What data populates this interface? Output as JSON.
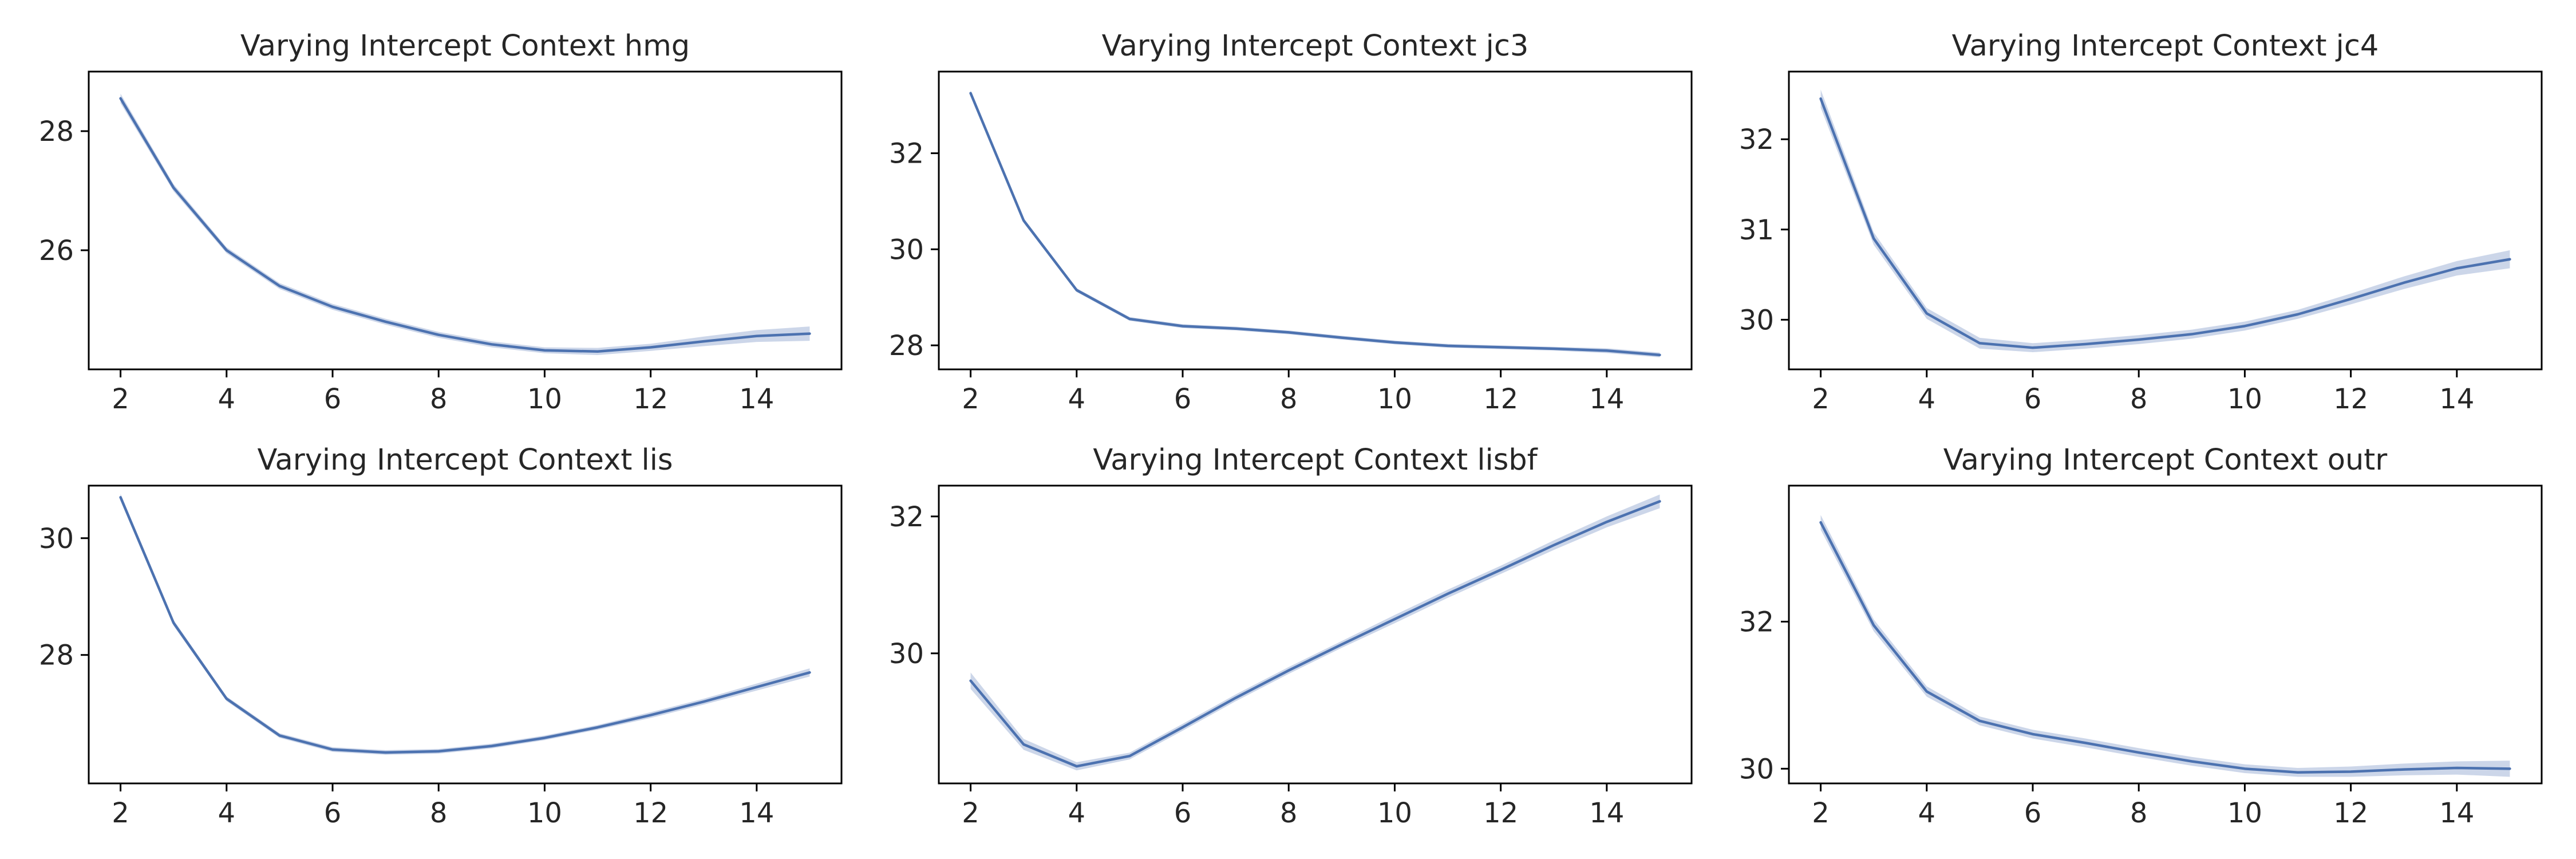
{
  "figure": {
    "line_color": "#4c72b0",
    "band_color": "#c6d2e7",
    "background": "#ffffff"
  },
  "chart_data": [
    {
      "type": "line",
      "title": "Varying Intercept Context hmg",
      "xlabel": "",
      "ylabel": "",
      "xlim": [
        1.4,
        15.6
      ],
      "ylim": [
        24.0,
        29.0
      ],
      "xticks": [
        2,
        4,
        6,
        8,
        10,
        12,
        14
      ],
      "yticks": [
        26,
        28
      ],
      "grid": false,
      "x": [
        2,
        3,
        4,
        5,
        6,
        7,
        8,
        9,
        10,
        11,
        12,
        13,
        14,
        15
      ],
      "series": [
        {
          "values": [
            28.55,
            27.05,
            26.0,
            25.4,
            25.05,
            24.8,
            24.58,
            24.42,
            24.32,
            24.3,
            24.37,
            24.47,
            24.56,
            24.6
          ],
          "band_halfwidth": [
            0.08,
            0.06,
            0.05,
            0.05,
            0.05,
            0.05,
            0.05,
            0.05,
            0.05,
            0.06,
            0.06,
            0.08,
            0.1,
            0.12
          ]
        }
      ]
    },
    {
      "type": "line",
      "title": "Varying Intercept Context jc3",
      "xlabel": "",
      "ylabel": "",
      "xlim": [
        1.4,
        15.6
      ],
      "ylim": [
        27.5,
        33.7
      ],
      "xticks": [
        2,
        4,
        6,
        8,
        10,
        12,
        14
      ],
      "yticks": [
        28,
        30,
        32
      ],
      "grid": false,
      "x": [
        2,
        3,
        4,
        5,
        6,
        7,
        8,
        9,
        10,
        11,
        12,
        13,
        14,
        15
      ],
      "series": [
        {
          "values": [
            33.25,
            30.6,
            29.15,
            28.55,
            28.4,
            28.35,
            28.27,
            28.16,
            28.06,
            27.99,
            27.96,
            27.93,
            27.89,
            27.8
          ],
          "band_halfwidth": [
            0.06,
            0.05,
            0.04,
            0.04,
            0.04,
            0.04,
            0.04,
            0.04,
            0.04,
            0.04,
            0.04,
            0.04,
            0.05,
            0.05
          ]
        }
      ]
    },
    {
      "type": "line",
      "title": "Varying Intercept Context jc4",
      "xlabel": "",
      "ylabel": "",
      "xlim": [
        1.4,
        15.6
      ],
      "ylim": [
        29.45,
        32.75
      ],
      "xticks": [
        2,
        4,
        6,
        8,
        10,
        12,
        14
      ],
      "yticks": [
        30,
        31,
        32
      ],
      "grid": false,
      "x": [
        2,
        3,
        4,
        5,
        6,
        7,
        8,
        9,
        10,
        11,
        12,
        13,
        14,
        15
      ],
      "series": [
        {
          "values": [
            32.45,
            30.9,
            30.07,
            29.74,
            29.69,
            29.73,
            29.78,
            29.84,
            29.93,
            30.06,
            30.23,
            30.41,
            30.57,
            30.67
          ],
          "band_halfwidth": [
            0.1,
            0.07,
            0.06,
            0.06,
            0.05,
            0.05,
            0.05,
            0.05,
            0.05,
            0.05,
            0.06,
            0.07,
            0.08,
            0.1
          ]
        }
      ]
    },
    {
      "type": "line",
      "title": "Varying Intercept Context lis",
      "xlabel": "",
      "ylabel": "",
      "xlim": [
        1.4,
        15.6
      ],
      "ylim": [
        25.8,
        30.9
      ],
      "xticks": [
        2,
        4,
        6,
        8,
        10,
        12,
        14
      ],
      "yticks": [
        28,
        30
      ],
      "grid": false,
      "x": [
        2,
        3,
        4,
        5,
        6,
        7,
        8,
        9,
        10,
        11,
        12,
        13,
        14,
        15
      ],
      "series": [
        {
          "values": [
            30.7,
            28.55,
            27.25,
            26.62,
            26.38,
            26.33,
            26.35,
            26.44,
            26.58,
            26.76,
            26.97,
            27.2,
            27.45,
            27.7
          ],
          "band_halfwidth": [
            0.06,
            0.05,
            0.04,
            0.04,
            0.04,
            0.04,
            0.04,
            0.04,
            0.04,
            0.04,
            0.05,
            0.05,
            0.06,
            0.07
          ]
        }
      ]
    },
    {
      "type": "line",
      "title": "Varying Intercept Context lisbf",
      "xlabel": "",
      "ylabel": "",
      "xlim": [
        1.4,
        15.6
      ],
      "ylim": [
        28.1,
        32.45
      ],
      "xticks": [
        2,
        4,
        6,
        8,
        10,
        12,
        14
      ],
      "yticks": [
        30,
        32
      ],
      "grid": false,
      "x": [
        2,
        3,
        4,
        5,
        6,
        7,
        8,
        9,
        10,
        11,
        12,
        13,
        14,
        15
      ],
      "series": [
        {
          "values": [
            29.6,
            28.67,
            28.35,
            28.5,
            28.92,
            29.35,
            29.75,
            30.13,
            30.5,
            30.87,
            31.22,
            31.58,
            31.92,
            32.22
          ],
          "band_halfwidth": [
            0.12,
            0.08,
            0.06,
            0.05,
            0.05,
            0.05,
            0.05,
            0.05,
            0.06,
            0.06,
            0.06,
            0.07,
            0.08,
            0.1
          ]
        }
      ]
    },
    {
      "type": "line",
      "title": "Varying Intercept Context outr",
      "xlabel": "",
      "ylabel": "",
      "xlim": [
        1.4,
        15.6
      ],
      "ylim": [
        29.8,
        33.85
      ],
      "xticks": [
        2,
        4,
        6,
        8,
        10,
        12,
        14
      ],
      "yticks": [
        30,
        32
      ],
      "grid": false,
      "x": [
        2,
        3,
        4,
        5,
        6,
        7,
        8,
        9,
        10,
        11,
        12,
        13,
        14,
        15
      ],
      "series": [
        {
          "values": [
            33.35,
            31.95,
            31.05,
            30.65,
            30.47,
            30.35,
            30.22,
            30.1,
            30.0,
            29.95,
            29.96,
            29.99,
            30.01,
            30.0
          ],
          "band_halfwidth": [
            0.1,
            0.08,
            0.07,
            0.06,
            0.06,
            0.06,
            0.06,
            0.06,
            0.06,
            0.06,
            0.07,
            0.08,
            0.09,
            0.11
          ]
        }
      ]
    }
  ]
}
